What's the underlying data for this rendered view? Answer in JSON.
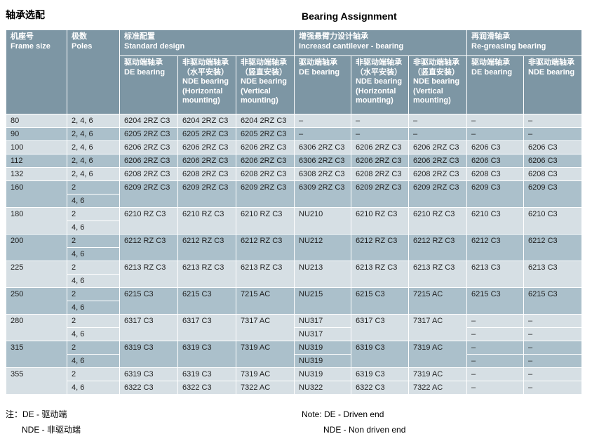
{
  "colors": {
    "header_bg": "#7d96a4",
    "row_light": "#d6dfe4",
    "row_dark": "#abc0cb",
    "grid": "#ffffff",
    "text": "#1f1f1f",
    "header_text": "#ffffff"
  },
  "page": {
    "title_zh": "轴承选配",
    "title_en": "Bearing Assignment"
  },
  "table": {
    "header": {
      "frame_size": "机座号\nFrame size",
      "poles": "极数\nPoles",
      "standard_design": "标准配置\nStandard design",
      "increased_cantilever": "增强悬臂力设计轴承\nIncreasd cantilever - bearing",
      "regreasing": "再润滑轴承\nRe-greasing bearing",
      "sub": {
        "std_de": "驱动端轴承\nDE bearing",
        "std_nde_h": "非驱动端轴承\n（水平安装）\nNDE bearing\n(Horizontal\nmounting)",
        "std_nde_v": "非驱动端轴承\n（竖直安装）\nNDE bearing\n(Vertical\nmounting)",
        "inc_de": "驱动端轴承\nDE bearing",
        "inc_nde_h": "非驱动端轴承\n（水平安装）\nNDE bearing\n(Horizontal\nmounting)",
        "inc_nde_v": "非驱动端轴承\n（竖直安装）\nNDE bearing\n(Vertical\nmounting)",
        "reg_de": "驱动端轴承\nDE bearing",
        "reg_nde": "非驱动端轴承\nNDE bearing"
      }
    },
    "rows": [
      {
        "g": 0,
        "cells": [
          "80",
          "2, 4, 6",
          "6204 2RZ C3",
          "6204 2RZ C3",
          "6204 2RZ C3",
          "–",
          "–",
          "–",
          "–",
          "–"
        ]
      },
      {
        "g": 1,
        "cells": [
          "90",
          "2, 4, 6",
          "6205 2RZ C3",
          "6205 2RZ C3",
          "6205 2RZ C3",
          "–",
          "–",
          "–",
          "–",
          "–"
        ]
      },
      {
        "g": 2,
        "cells": [
          "100",
          "2, 4, 6",
          "6206 2RZ C3",
          "6206 2RZ C3",
          "6206 2RZ C3",
          "6306 2RZ C3",
          "6206 2RZ C3",
          "6206 2RZ C3",
          "6206  C3",
          "6206  C3"
        ]
      },
      {
        "g": 3,
        "cells": [
          "112",
          "2, 4, 6",
          "6206 2RZ C3",
          "6206 2RZ C3",
          "6206 2RZ C3",
          "6306 2RZ C3",
          "6206 2RZ C3",
          "6206 2RZ C3",
          "6206  C3",
          "6206  C3"
        ]
      },
      {
        "g": 4,
        "cells": [
          "132",
          "2, 4, 6",
          "6208 2RZ C3",
          "6208 2RZ C3",
          "6208 2RZ C3",
          "6308 2RZ C3",
          "6208 2RZ C3",
          "6208 2RZ C3",
          "6208  C3",
          "6208  C3"
        ]
      },
      {
        "g": 5,
        "cells": [
          [
            "160",
            2
          ],
          "2",
          [
            "6209 2RZ C3",
            2
          ],
          [
            "6209 2RZ C3",
            2
          ],
          [
            "6209 2RZ C3",
            2
          ],
          [
            "6309 2RZ C3",
            2
          ],
          [
            "6209 2RZ C3",
            2
          ],
          [
            "6209 2RZ C3",
            2
          ],
          [
            "6209  C3",
            2
          ],
          [
            "6209  C3",
            2
          ]
        ]
      },
      {
        "g": 5,
        "cells": [
          null,
          "4, 6",
          null,
          null,
          null,
          null,
          null,
          null,
          null,
          null
        ]
      },
      {
        "g": 6,
        "cells": [
          [
            "180",
            2
          ],
          "2",
          [
            "6210 RZ C3",
            2
          ],
          [
            "6210 RZ C3",
            2
          ],
          [
            "6210 RZ C3",
            2
          ],
          [
            "NU210",
            2
          ],
          [
            "6210 RZ C3",
            2
          ],
          [
            "6210 RZ C3",
            2
          ],
          [
            "6210  C3",
            2
          ],
          [
            "6210  C3",
            2
          ]
        ]
      },
      {
        "g": 6,
        "cells": [
          null,
          "4, 6",
          null,
          null,
          null,
          null,
          null,
          null,
          null,
          null
        ]
      },
      {
        "g": 7,
        "cells": [
          [
            "200",
            2
          ],
          "2",
          [
            "6212 RZ C3",
            2
          ],
          [
            "6212 RZ C3",
            2
          ],
          [
            "6212 RZ C3",
            2
          ],
          [
            "NU212",
            2
          ],
          [
            "6212 RZ C3",
            2
          ],
          [
            "6212 RZ C3",
            2
          ],
          [
            "6212  C3",
            2
          ],
          [
            "6212  C3",
            2
          ]
        ]
      },
      {
        "g": 7,
        "cells": [
          null,
          "4, 6",
          null,
          null,
          null,
          null,
          null,
          null,
          null,
          null
        ]
      },
      {
        "g": 8,
        "cells": [
          [
            "225",
            2
          ],
          "2",
          [
            "6213 RZ C3",
            2
          ],
          [
            "6213 RZ C3",
            2
          ],
          [
            "6213 RZ C3",
            2
          ],
          [
            "NU213",
            2
          ],
          [
            "6213 RZ C3",
            2
          ],
          [
            "6213 RZ C3",
            2
          ],
          [
            "6213  C3",
            2
          ],
          [
            "6213  C3",
            2
          ]
        ]
      },
      {
        "g": 8,
        "cells": [
          null,
          "4, 6",
          null,
          null,
          null,
          null,
          null,
          null,
          null,
          null
        ]
      },
      {
        "g": 9,
        "cells": [
          [
            "250",
            2
          ],
          "2",
          [
            "6215 C3",
            2
          ],
          [
            "6215 C3",
            2
          ],
          [
            "7215 AC",
            2
          ],
          [
            "NU215",
            2
          ],
          [
            "6215 C3",
            2
          ],
          [
            "7215 AC",
            2
          ],
          [
            "6215 C3",
            2
          ],
          [
            "6215 C3",
            2
          ]
        ]
      },
      {
        "g": 9,
        "cells": [
          null,
          "4, 6",
          null,
          null,
          null,
          null,
          null,
          null,
          null,
          null
        ]
      },
      {
        "g": 10,
        "cells": [
          [
            "280",
            2
          ],
          "2",
          [
            "6317 C3",
            2
          ],
          [
            "6317 C3",
            2
          ],
          [
            "7317 AC",
            2
          ],
          "NU317",
          [
            "6317 C3",
            2
          ],
          [
            "7317 AC",
            2
          ],
          "–",
          "–"
        ]
      },
      {
        "g": 10,
        "cells": [
          null,
          "4, 6",
          null,
          null,
          null,
          "NU317",
          null,
          null,
          "–",
          "–"
        ]
      },
      {
        "g": 11,
        "cells": [
          [
            "315",
            2
          ],
          "2",
          [
            "6319 C3",
            2
          ],
          [
            "6319 C3",
            2
          ],
          [
            "7319 AC",
            2
          ],
          "NU319",
          [
            "6319 C3",
            2
          ],
          [
            "7319 AC",
            2
          ],
          "–",
          "–"
        ]
      },
      {
        "g": 11,
        "cells": [
          null,
          "4, 6",
          null,
          null,
          null,
          "NU319",
          null,
          null,
          "–",
          "–"
        ]
      },
      {
        "g": 12,
        "cells": [
          [
            "355",
            2
          ],
          "2",
          "6319 C3",
          "6319 C3",
          "7319 AC",
          "NU319",
          "6319 C3",
          "7319 AC",
          "–",
          "–"
        ]
      },
      {
        "g": 12,
        "cells": [
          null,
          "4, 6",
          "6322 C3",
          "6322 C3",
          "7322 AC",
          "NU322",
          "6322 C3",
          "7322 AC",
          "–",
          "–"
        ]
      }
    ]
  },
  "notes": {
    "zh_1": "注：DE - 驱动端",
    "zh_2": "NDE - 非驱动端",
    "en_1": "Note: DE - Driven end",
    "en_2": "NDE - Non driven end"
  }
}
